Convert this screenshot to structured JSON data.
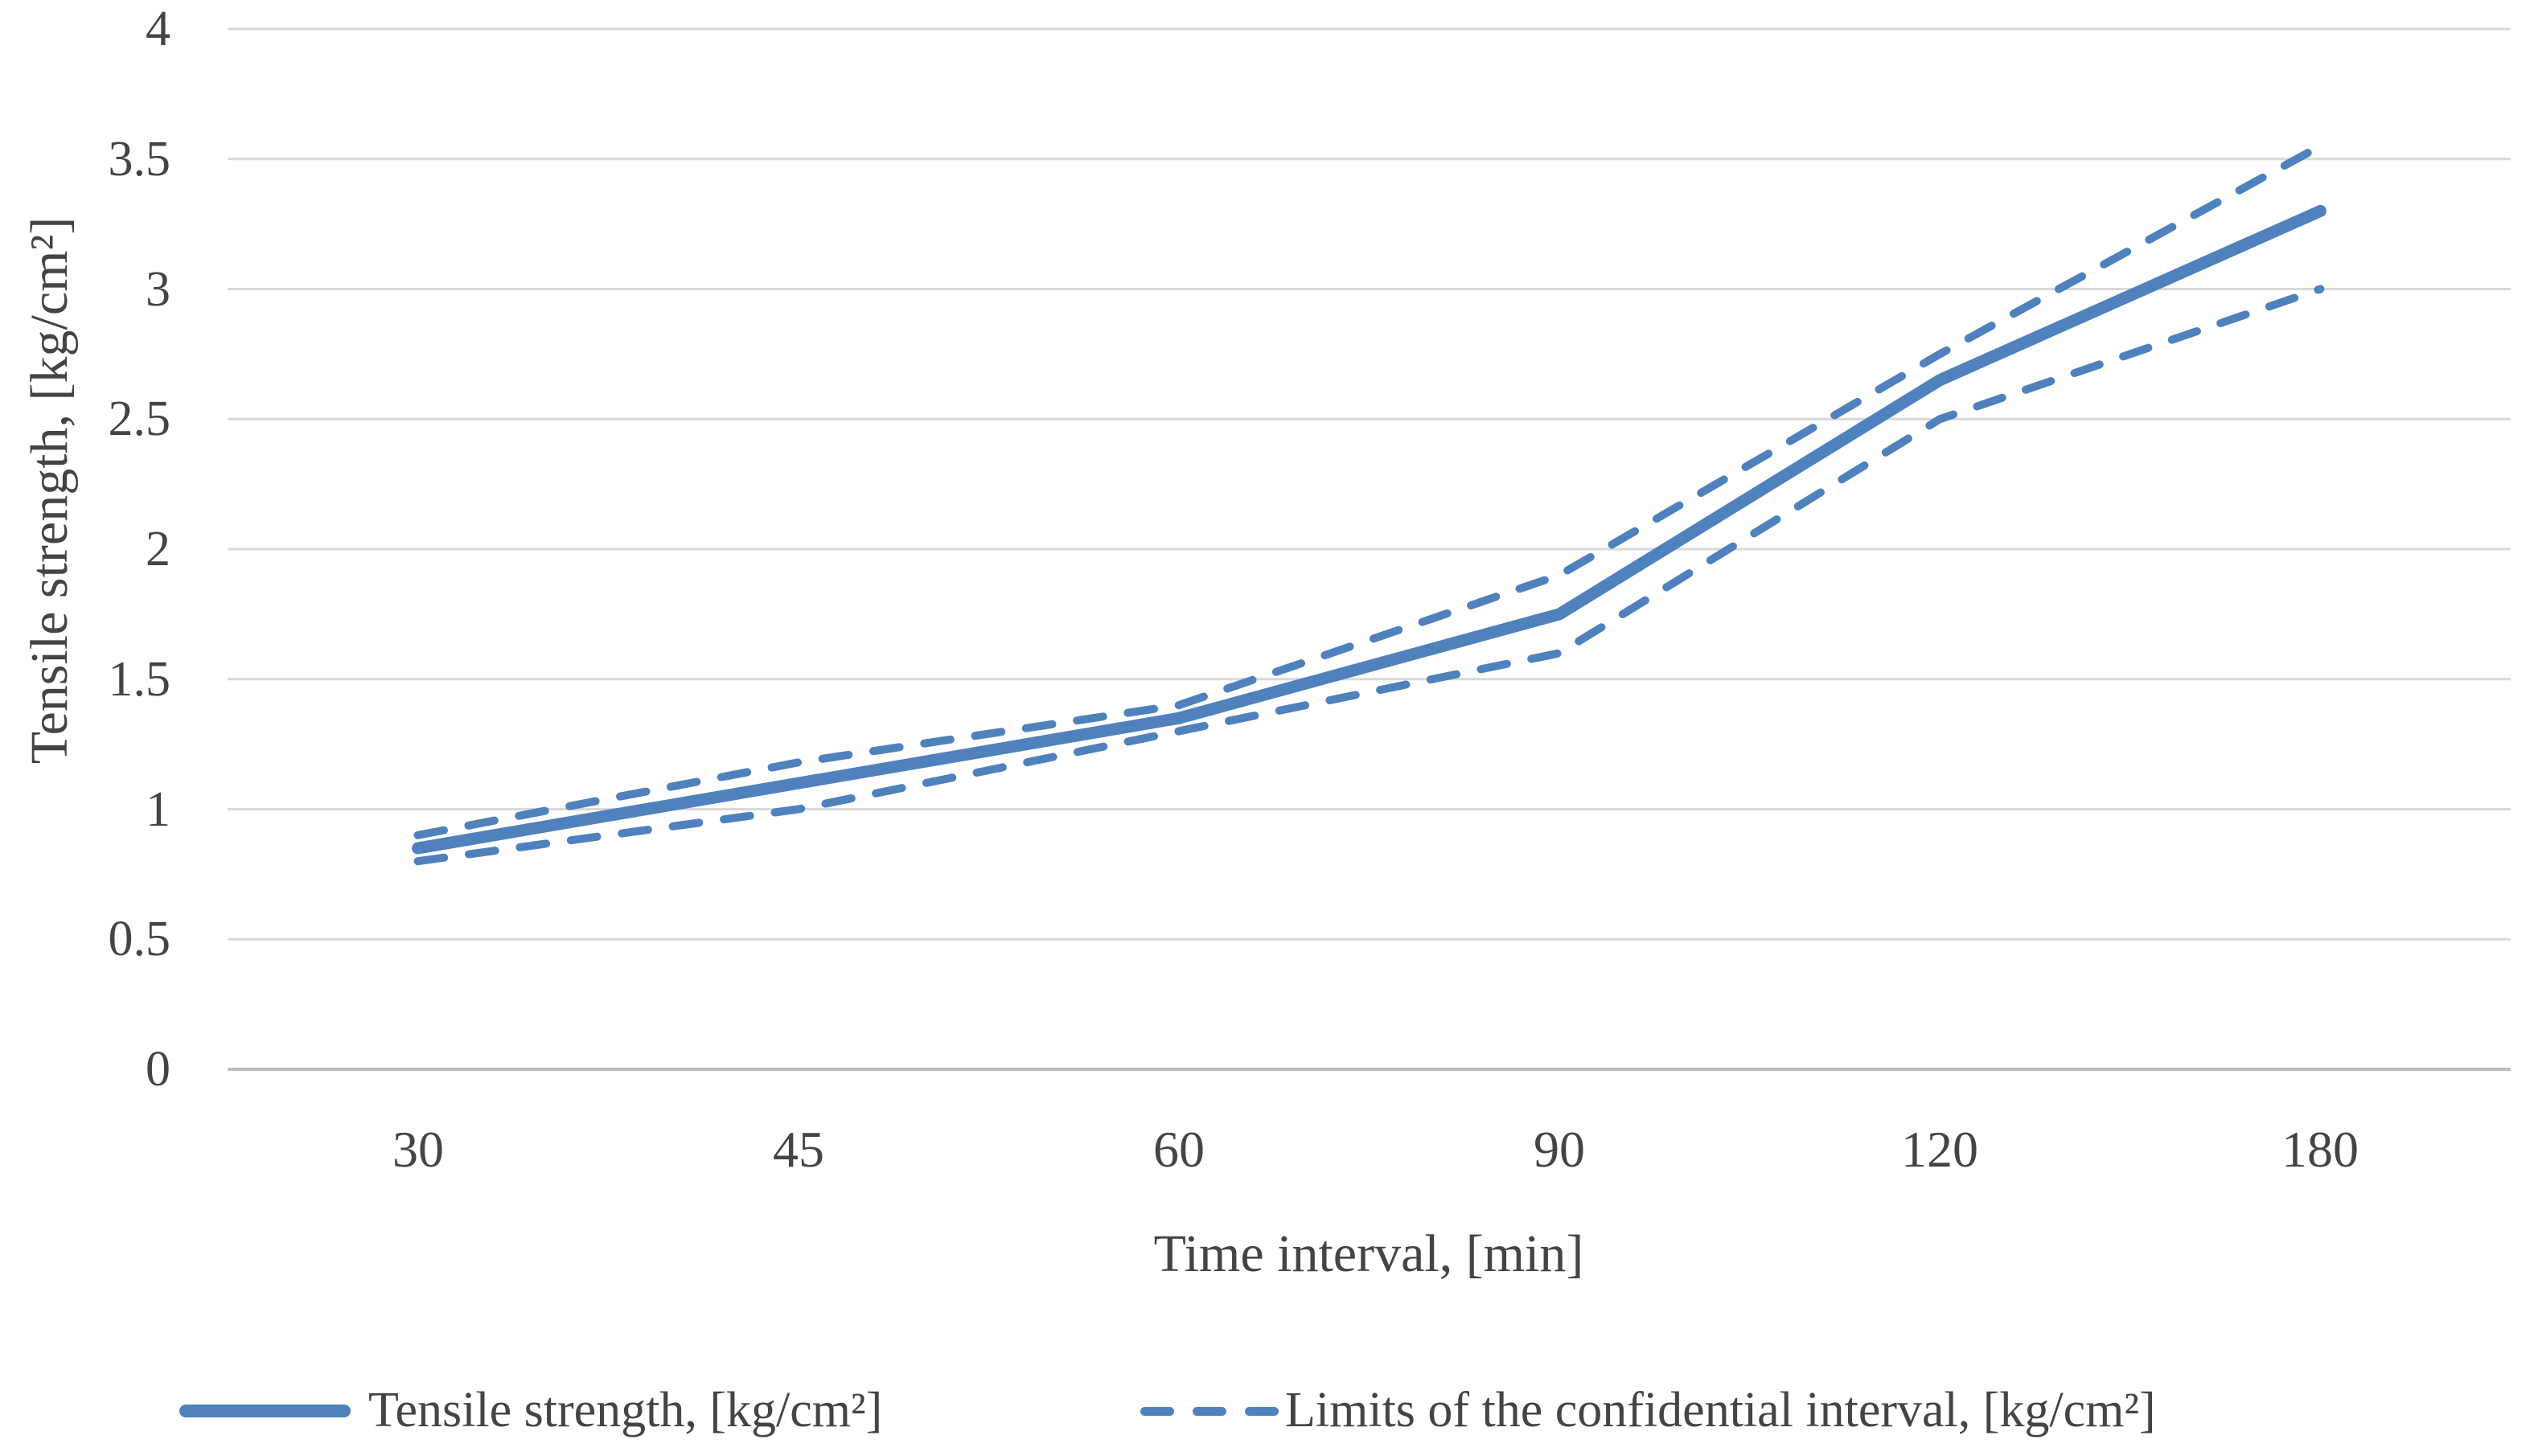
{
  "chart_data": {
    "type": "line",
    "title": "",
    "xlabel": "Time interval, [min]",
    "ylabel": "Tensile strength, [kg/cm²]",
    "categories": [
      30,
      45,
      60,
      90,
      120,
      180
    ],
    "xtick_labels": [
      "30",
      "45",
      "60",
      "90",
      "120",
      "180"
    ],
    "yticks": [
      4,
      3.5,
      3,
      2.5,
      2,
      1.5,
      1,
      0.5,
      0
    ],
    "ytick_labels": [
      "4",
      "3.5",
      "3",
      "2.5",
      "2",
      "1.5",
      "1",
      "0.5",
      "0"
    ],
    "ylim": [
      0,
      4
    ],
    "grid": true,
    "legend_position": "bottom",
    "series": [
      {
        "name": "Tensile strength, [kg/cm²]",
        "style": "solid",
        "values": [
          0.85,
          1.1,
          1.35,
          1.75,
          2.65,
          3.3
        ]
      },
      {
        "name": "Limits of the confidential interval, [kg/cm²] (upper)",
        "style": "dashed",
        "values": [
          0.9,
          1.18,
          1.4,
          1.9,
          2.75,
          3.55
        ]
      },
      {
        "name": "Limits of the confidential interval, [kg/cm²] (lower)",
        "style": "dashed",
        "values": [
          0.8,
          1.0,
          1.3,
          1.6,
          2.5,
          3.0
        ]
      }
    ],
    "colors": {
      "line": "#4F81BD",
      "gridline": "#D9D9D9",
      "axis": "#BFBFBF",
      "text": "#444444"
    }
  },
  "legend": {
    "items": [
      {
        "label": "Tensile strength, [kg/cm²]"
      },
      {
        "label": "Limits of the confidential interval, [kg/cm²]"
      }
    ]
  }
}
